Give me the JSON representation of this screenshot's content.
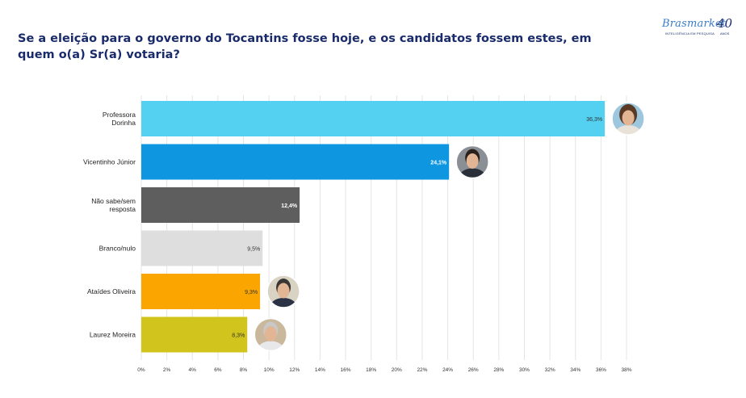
{
  "title": "Se a eleição para o governo do Tocantins fosse hoje, e os candidatos fossem estes, em quem o(a) Sr(a) votaria?",
  "logo": {
    "script": "Brasmarket",
    "number": "40",
    "tagline": "INTELIGÊNCIA EM PESQUISA",
    "anos": "ANOS"
  },
  "colors": {
    "title": "#1a2b6b",
    "grid": "#e4e4e4"
  },
  "chart_data": {
    "type": "bar",
    "orientation": "horizontal",
    "title": "Se a eleição para o governo do Tocantins fosse hoje, e os candidatos fossem estes, em quem o(a) Sr(a) votaria?",
    "xlabel": "",
    "ylabel": "",
    "xlim": [
      0,
      38
    ],
    "grid": true,
    "categories": [
      [
        "Professora",
        "Dorinha"
      ],
      [
        "Vicentinho Júnior"
      ],
      [
        "Não sabe/sem",
        "resposta"
      ],
      [
        "Branco/nulo"
      ],
      [
        "Ataídes Oliveira"
      ],
      [
        "Laurez Moreira"
      ]
    ],
    "values": [
      36.3,
      24.1,
      12.4,
      9.5,
      9.3,
      8.3
    ],
    "value_labels": [
      "36,3%",
      "24,1%",
      "12,4%",
      "9,5%",
      "9,3%",
      "8,3%"
    ],
    "bar_colors": [
      "#54d0f0",
      "#0e96e0",
      "#5e5e5e",
      "#dedede",
      "#fba500",
      "#d1c41c"
    ],
    "label_colors": [
      "#333333",
      "#ffffff",
      "#ffffff",
      "#333333",
      "#333333",
      "#333333"
    ],
    "label_bold": [
      false,
      true,
      true,
      false,
      false,
      false
    ],
    "has_photo": [
      true,
      true,
      false,
      false,
      true,
      true
    ],
    "x_ticks": [
      "0%",
      "2%",
      "4%",
      "6%",
      "8%",
      "10%",
      "12%",
      "14%",
      "16%",
      "18%",
      "20%",
      "22%",
      "24%",
      "26%",
      "28%",
      "30%",
      "32%",
      "34%",
      "36%",
      "38%"
    ],
    "x_tick_values": [
      0,
      2,
      4,
      6,
      8,
      10,
      12,
      14,
      16,
      18,
      20,
      22,
      24,
      26,
      28,
      30,
      32,
      34,
      36,
      38
    ]
  }
}
